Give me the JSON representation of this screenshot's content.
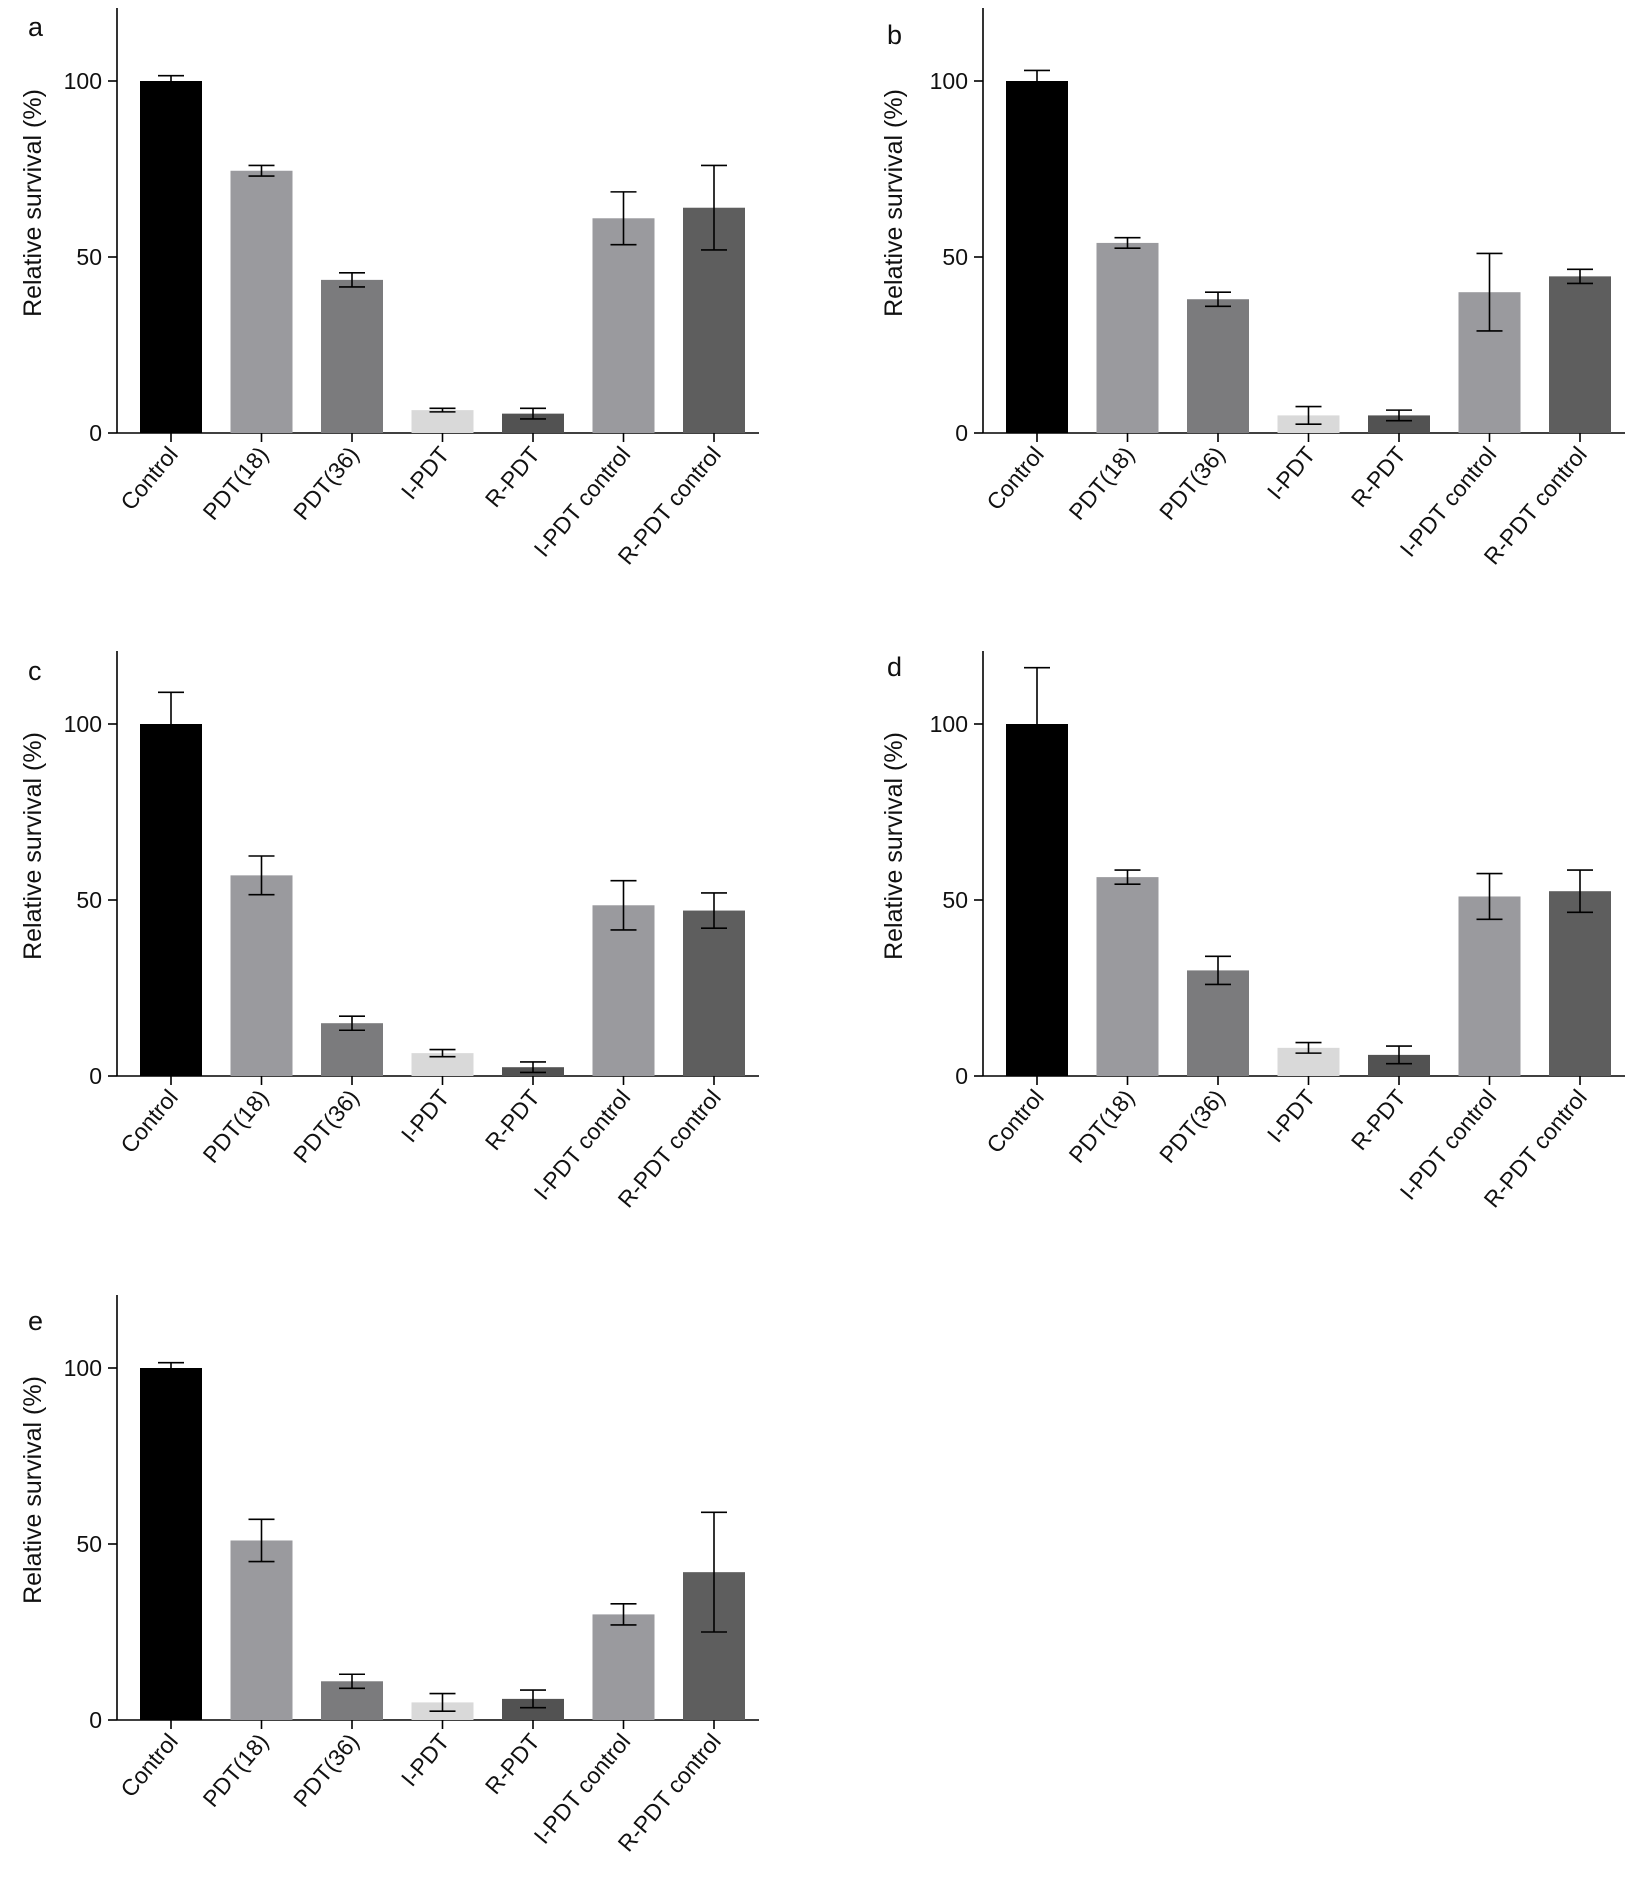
{
  "colors": {
    "Control": "#000000",
    "PDT(18)": "#9a9a9e",
    "PDT(36)": "#7b7b7d",
    "I-PDT": "#d9d9d9",
    "R-PDT": "#525252",
    "I-PDT control": "#9a9a9e",
    "R-PDT control": "#5e5e5e",
    "axis": "#000000"
  },
  "chart_data": [
    {
      "panel": "a",
      "type": "bar",
      "ylabel": "Relative survival (%)",
      "ylim": [
        0,
        120
      ],
      "yticks": [
        0,
        50,
        100
      ],
      "categories": [
        "Control",
        "PDT(18)",
        "PDT(36)",
        "I-PDT",
        "R-PDT",
        "I-PDT control",
        "R-PDT control"
      ],
      "values": [
        100,
        74.5,
        43.5,
        6.5,
        5.5,
        61,
        64
      ],
      "errors": [
        1.5,
        1.5,
        2,
        0.5,
        1.5,
        7.5,
        12
      ]
    },
    {
      "panel": "b",
      "type": "bar",
      "ylabel": "Relative survival (%)",
      "ylim": [
        0,
        120
      ],
      "yticks": [
        0,
        50,
        100
      ],
      "categories": [
        "Control",
        "PDT(18)",
        "PDT(36)",
        "I-PDT",
        "R-PDT",
        "I-PDT control",
        "R-PDT control"
      ],
      "values": [
        100,
        54,
        38,
        5,
        5,
        40,
        44.5
      ],
      "errors": [
        3,
        1.5,
        2,
        2.5,
        1.5,
        11,
        2
      ]
    },
    {
      "panel": "c",
      "type": "bar",
      "ylabel": "Relative survival (%)",
      "ylim": [
        0,
        120
      ],
      "yticks": [
        0,
        50,
        100
      ],
      "categories": [
        "Control",
        "PDT(18)",
        "PDT(36)",
        "I-PDT",
        "R-PDT",
        "I-PDT control",
        "R-PDT control"
      ],
      "values": [
        100,
        57,
        15,
        6.5,
        2.5,
        48.5,
        47
      ],
      "errors": [
        9,
        5.5,
        2,
        1,
        1.5,
        7,
        5
      ]
    },
    {
      "panel": "d",
      "type": "bar",
      "ylabel": "Relative survival (%)",
      "ylim": [
        0,
        120
      ],
      "yticks": [
        0,
        50,
        100
      ],
      "categories": [
        "Control",
        "PDT(18)",
        "PDT(36)",
        "I-PDT",
        "R-PDT",
        "I-PDT control",
        "R-PDT control"
      ],
      "values": [
        100,
        56.5,
        30,
        8,
        6,
        51,
        52.5
      ],
      "errors": [
        16,
        2,
        4,
        1.5,
        2.5,
        6.5,
        6
      ]
    },
    {
      "panel": "e",
      "type": "bar",
      "ylabel": "Relative survival (%)",
      "ylim": [
        0,
        120
      ],
      "yticks": [
        0,
        50,
        100
      ],
      "categories": [
        "Control",
        "PDT(18)",
        "PDT(36)",
        "I-PDT",
        "R-PDT",
        "I-PDT control",
        "R-PDT control"
      ],
      "values": [
        100,
        51,
        11,
        5,
        6,
        30,
        42
      ],
      "errors": [
        1.5,
        6,
        2,
        2.5,
        2.5,
        3,
        17
      ]
    }
  ]
}
